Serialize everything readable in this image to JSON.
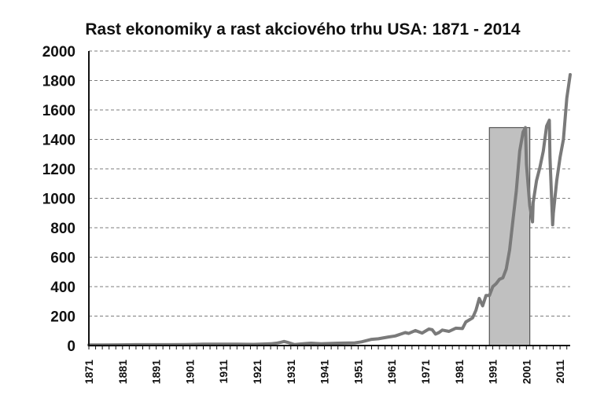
{
  "chart_data": {
    "type": "line",
    "title": "Rast ekonomiky a rast akciového trhu USA: 1871 - 2014",
    "xlabel": "",
    "ylabel": "",
    "xlim": [
      1871,
      2014
    ],
    "ylim": [
      0,
      2000
    ],
    "y_ticks": [
      0,
      200,
      400,
      600,
      800,
      1000,
      1200,
      1400,
      1600,
      1800,
      2000
    ],
    "x_ticks": [
      1871,
      1881,
      1891,
      1901,
      1911,
      1921,
      1931,
      1941,
      1951,
      1961,
      1971,
      1981,
      1991,
      2001,
      2011
    ],
    "grid": "horizontal-dashed",
    "line_color": "#7a7a7a",
    "highlight": {
      "x_start": 1990,
      "x_end": 2002,
      "y_top": 1480,
      "fill": "#c0c0c0",
      "stroke": "#555555"
    },
    "series": [
      {
        "x": [
          1871,
          1875,
          1880,
          1885,
          1890,
          1895,
          1900,
          1905,
          1910,
          1915,
          1920,
          1925,
          1927,
          1928,
          1929,
          1930,
          1932,
          1935,
          1937,
          1940,
          1945,
          1950,
          1952,
          1955,
          1957,
          1960,
          1962,
          1965,
          1966,
          1968,
          1970,
          1972,
          1973,
          1974,
          1975,
          1976,
          1978,
          1980,
          1982,
          1983,
          1985,
          1986,
          1987,
          1988,
          1989,
          1990,
          1991,
          1992,
          1993,
          1994,
          1995,
          1996,
          1997,
          1998,
          1999,
          2000,
          2000.7,
          2001,
          2002,
          2002.8,
          2003,
          2004,
          2005,
          2006,
          2007,
          2007.8,
          2008,
          2008.8,
          2009,
          2010,
          2011,
          2012,
          2013,
          2014
        ],
        "values": [
          4,
          4,
          5,
          6,
          6,
          6,
          7,
          9,
          9,
          9,
          8,
          12,
          17,
          22,
          28,
          22,
          7,
          13,
          16,
          12,
          16,
          18,
          25,
          42,
          46,
          58,
          65,
          88,
          82,
          102,
          85,
          112,
          108,
          78,
          88,
          105,
          96,
          118,
          115,
          160,
          188,
          240,
          320,
          270,
          340,
          340,
          400,
          420,
          450,
          460,
          520,
          650,
          850,
          1050,
          1320,
          1450,
          1480,
          1230,
          950,
          840,
          970,
          1120,
          1210,
          1320,
          1490,
          1530,
          1280,
          820,
          900,
          1120,
          1280,
          1400,
          1680,
          1840
        ]
      }
    ]
  }
}
